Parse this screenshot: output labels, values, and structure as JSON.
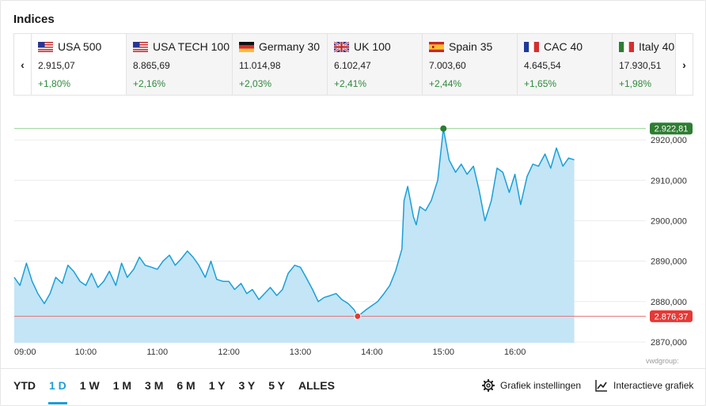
{
  "panel": {
    "title": "Indices",
    "source": "vwdgroup:"
  },
  "carousel": {
    "prev_icon": "chevron-left-icon",
    "next_icon": "chevron-right-icon",
    "prev_glyph": "‹",
    "next_glyph": "›",
    "items": [
      {
        "name": "USA 500",
        "flag": "us-flag-icon",
        "value": "2.915,07",
        "change": "+1,80%",
        "active": true
      },
      {
        "name": "USA TECH 100",
        "flag": "us-flag-icon",
        "value": "8.865,69",
        "change": "+2,16%",
        "active": false
      },
      {
        "name": "Germany 30",
        "flag": "de-flag-icon",
        "value": "11.014,98",
        "change": "+2,03%",
        "active": false
      },
      {
        "name": "UK 100",
        "flag": "uk-flag-icon",
        "value": "6.102,47",
        "change": "+2,41%",
        "active": false
      },
      {
        "name": "Spain 35",
        "flag": "es-flag-icon",
        "value": "7.003,60",
        "change": "+2,44%",
        "active": false
      },
      {
        "name": "CAC 40",
        "flag": "fr-flag-icon",
        "value": "4.645,54",
        "change": "+1,65%",
        "active": false
      },
      {
        "name": "Italy 40",
        "flag": "it-flag-icon",
        "value": "17.930,51",
        "change": "+1,98%",
        "active": false
      }
    ]
  },
  "chart_data": {
    "type": "area",
    "title": "",
    "xlabel": "",
    "ylabel": "",
    "x_ticks": [
      "09:00",
      "10:00",
      "11:00",
      "12:00",
      "13:00",
      "14:00",
      "15:00",
      "16:00"
    ],
    "y_ticks": [
      "2870,000",
      "2880,000",
      "2890,000",
      "2900,000",
      "2910,000",
      "2920,000"
    ],
    "y_tick_values": [
      2870,
      2880,
      2890,
      2900,
      2910,
      2920
    ],
    "xlim_hours": [
      9.0,
      17.83
    ],
    "ylim": [
      2869.8,
      2925.3
    ],
    "high": {
      "label": "2.922,81",
      "value": 2922.81,
      "time": 15.0
    },
    "low": {
      "label": "2.876,37",
      "value": 2876.37,
      "time": 13.8
    },
    "series": [
      {
        "x": [
          9.0,
          9.08,
          9.17,
          9.25,
          9.33,
          9.42,
          9.5,
          9.58,
          9.67,
          9.75,
          9.83,
          9.92,
          10.0,
          10.08,
          10.17,
          10.25,
          10.33,
          10.42,
          10.5,
          10.58,
          10.67,
          10.75,
          10.83,
          10.92,
          11.0,
          11.08,
          11.17,
          11.25,
          11.33,
          11.42,
          11.5,
          11.58,
          11.67,
          11.75,
          11.83,
          11.92,
          12.0,
          12.08,
          12.17,
          12.25,
          12.33,
          12.42,
          12.5,
          12.58,
          12.67,
          12.75,
          12.83,
          12.92,
          13.0,
          13.08,
          13.17,
          13.25,
          13.33,
          13.42,
          13.5,
          13.58,
          13.67,
          13.75,
          13.8,
          13.85,
          13.92,
          14.0,
          14.08,
          14.17,
          14.25,
          14.33,
          14.42,
          14.45,
          14.5,
          14.58,
          14.62,
          14.67,
          14.75,
          14.83,
          14.92,
          15.0,
          15.08,
          15.17,
          15.25,
          15.33,
          15.42,
          15.5,
          15.58,
          15.67,
          15.75,
          15.83,
          15.92,
          16.0,
          16.08,
          16.17,
          16.25,
          16.33,
          16.42,
          16.5,
          16.58,
          16.67,
          16.75,
          16.83
        ],
        "y": [
          2886.0,
          2884.0,
          2889.5,
          2885.0,
          2882.0,
          2879.5,
          2882.0,
          2886.0,
          2884.5,
          2889.0,
          2887.5,
          2885.0,
          2884.0,
          2887.0,
          2883.5,
          2885.0,
          2887.5,
          2884.0,
          2889.5,
          2886.0,
          2888.0,
          2891.0,
          2889.0,
          2888.5,
          2888.0,
          2890.0,
          2891.5,
          2889.0,
          2890.5,
          2892.5,
          2891.0,
          2889.0,
          2886.0,
          2890.0,
          2885.5,
          2885.0,
          2885.0,
          2883.0,
          2884.5,
          2882.0,
          2883.0,
          2880.5,
          2882.0,
          2883.5,
          2881.5,
          2883.0,
          2887.0,
          2889.0,
          2888.5,
          2886.0,
          2883.0,
          2880.0,
          2881.0,
          2881.5,
          2882.0,
          2880.5,
          2879.5,
          2878.0,
          2876.37,
          2877.0,
          2878.0,
          2879.0,
          2880.0,
          2882.0,
          2884.0,
          2887.5,
          2893.0,
          2905.0,
          2908.5,
          2901.0,
          2899.0,
          2903.5,
          2902.5,
          2905.0,
          2910.0,
          2922.81,
          2915.0,
          2912.0,
          2914.0,
          2911.5,
          2913.5,
          2907.5,
          2900.0,
          2905.0,
          2913.0,
          2912.0,
          2907.0,
          2911.5,
          2904.0,
          2911.0,
          2914.0,
          2913.5,
          2916.5,
          2913.0,
          2918.0,
          2913.5,
          2915.5,
          2915.07
        ]
      }
    ],
    "colors": {
      "line": "#1a9fd8",
      "fill": "#c3e5f6",
      "high": "#2e7d32",
      "low": "#e53935"
    }
  },
  "periods": [
    {
      "label": "YTD",
      "active": false
    },
    {
      "label": "1 D",
      "active": true
    },
    {
      "label": "1 W",
      "active": false
    },
    {
      "label": "1 M",
      "active": false
    },
    {
      "label": "3 M",
      "active": false
    },
    {
      "label": "6 M",
      "active": false
    },
    {
      "label": "1 Y",
      "active": false
    },
    {
      "label": "3 Y",
      "active": false
    },
    {
      "label": "5 Y",
      "active": false
    },
    {
      "label": "ALLES",
      "active": false
    }
  ],
  "tools": {
    "settings": {
      "label": "Grafiek instellingen",
      "icon": "gear-icon"
    },
    "interactive": {
      "label": "Interactieve grafiek",
      "icon": "line-chart-icon"
    }
  }
}
